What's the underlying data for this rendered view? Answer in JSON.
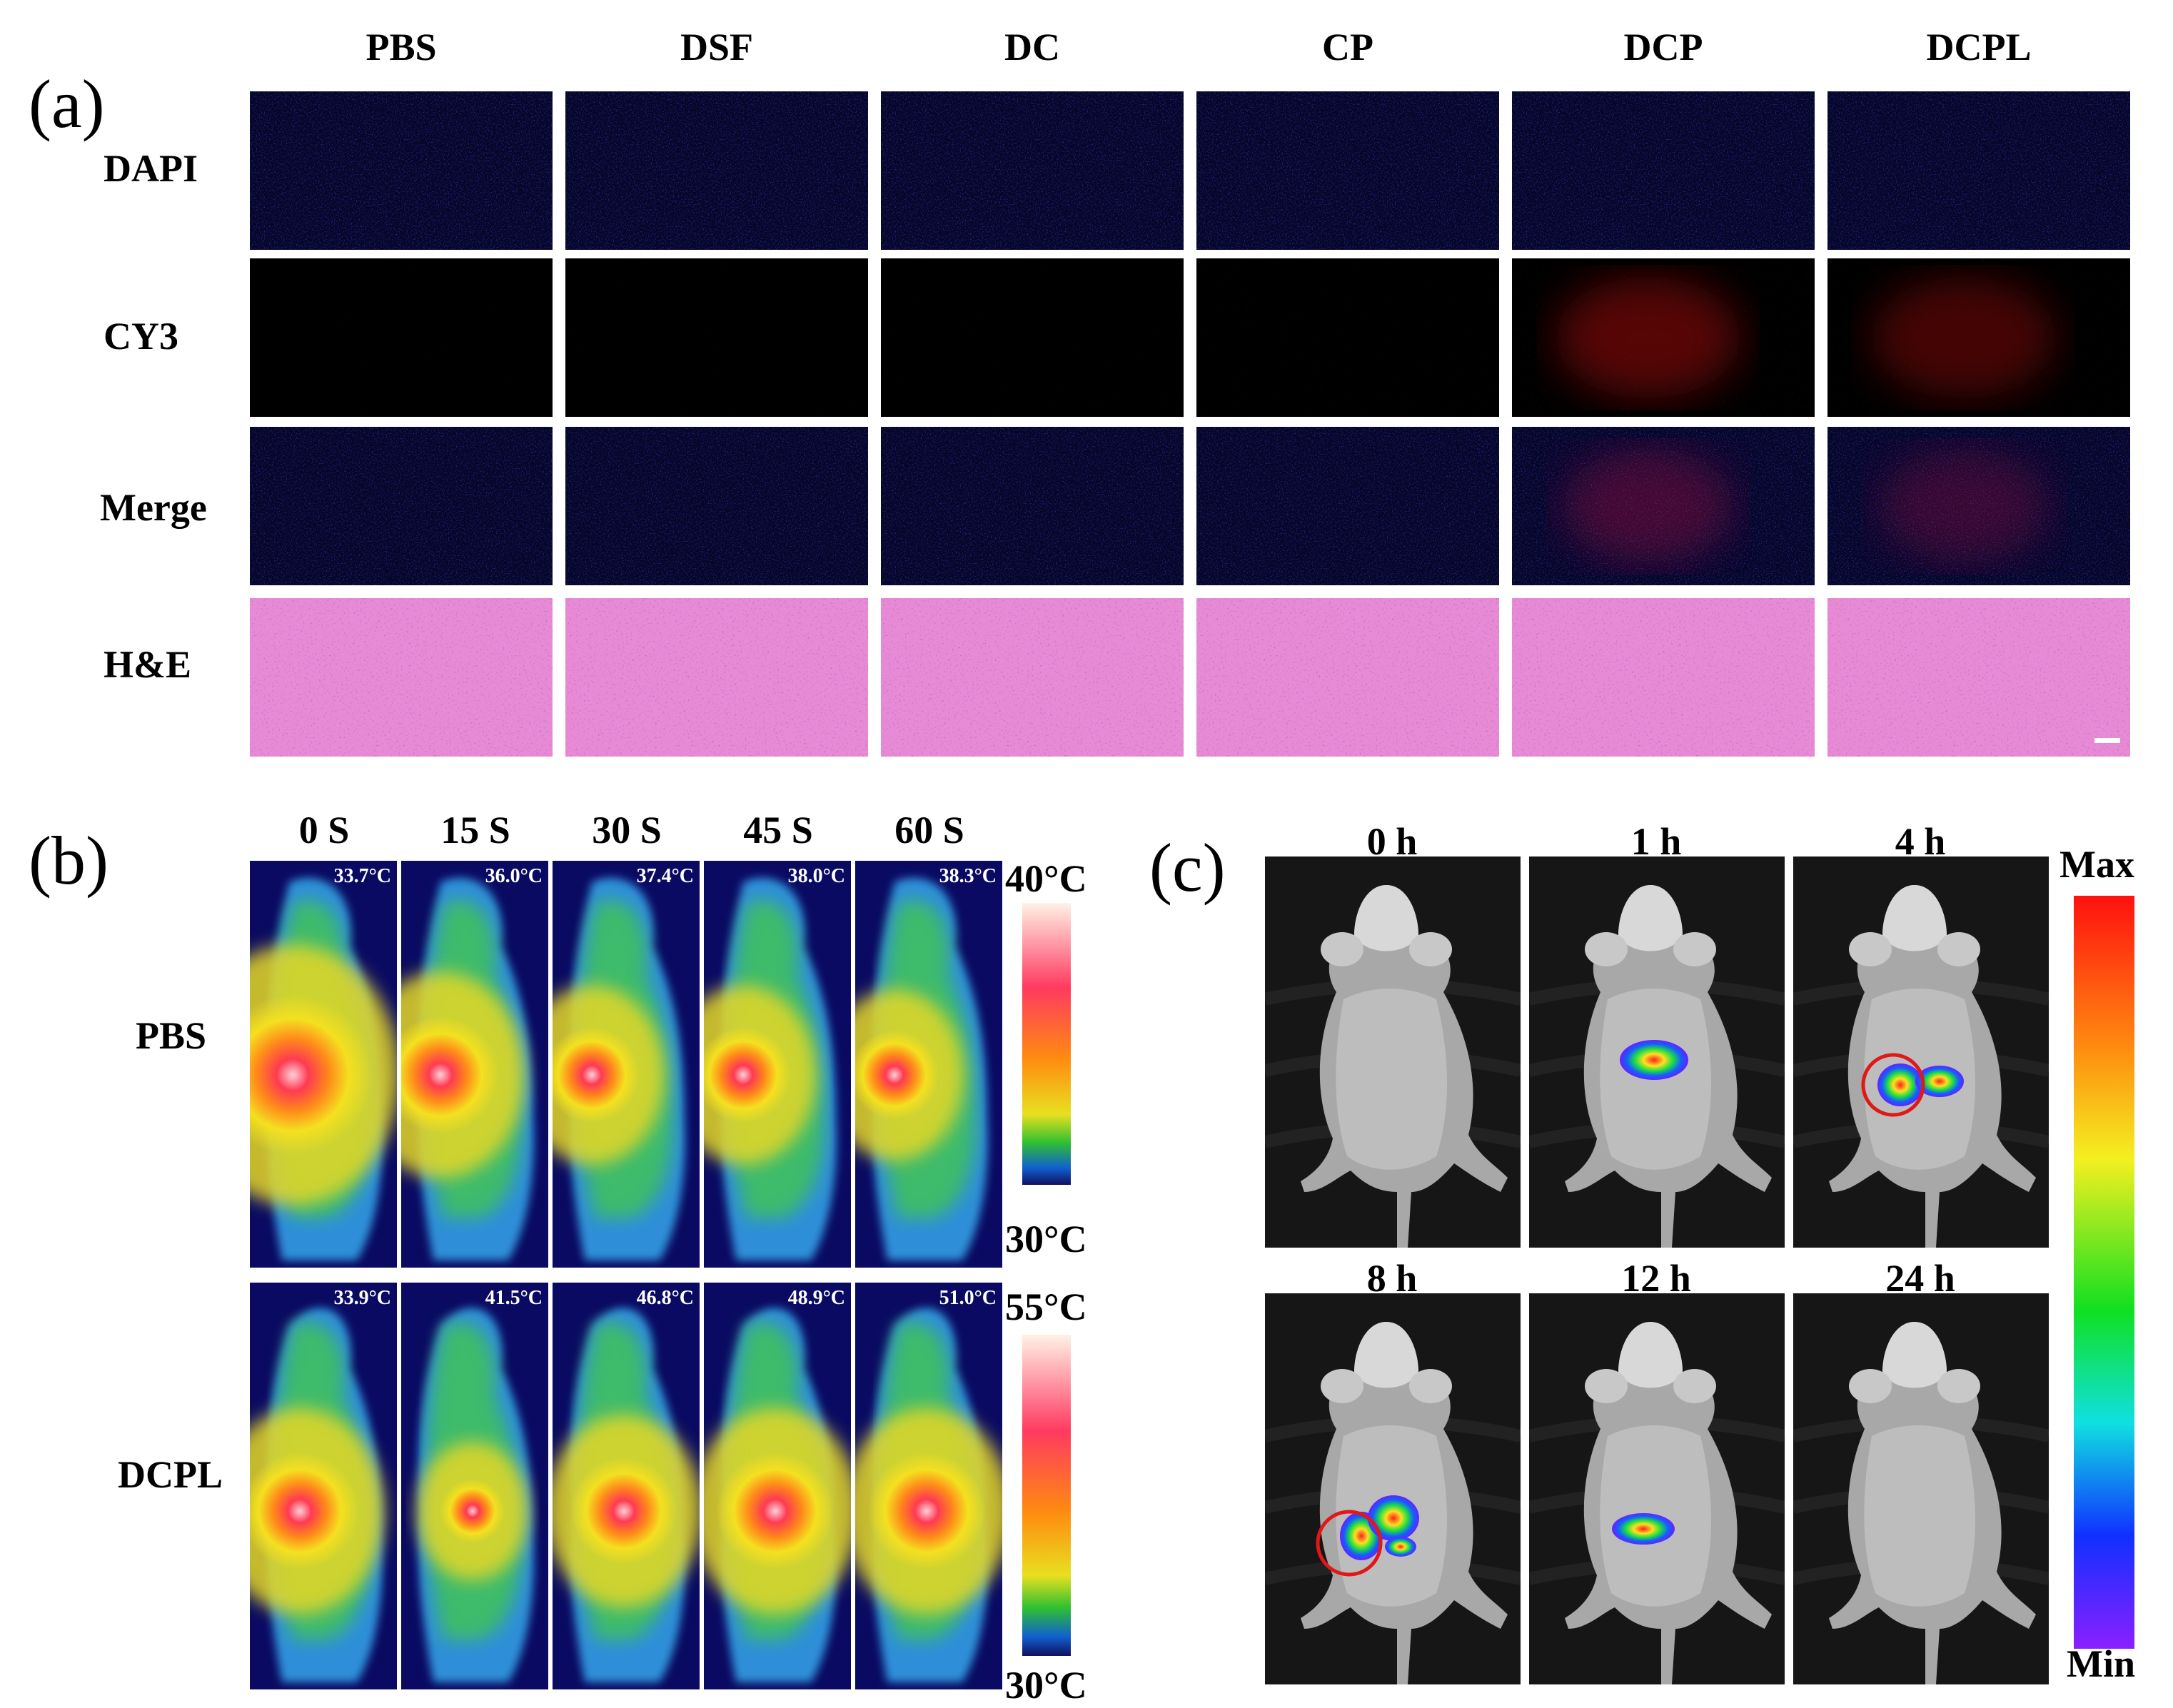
{
  "panel_a": {
    "label": "(a)",
    "columns": [
      "PBS",
      "DSF",
      "DC",
      "CP",
      "DCP",
      "DCPL"
    ],
    "rows": [
      "DAPI",
      "CY3",
      "Merge",
      "H&E"
    ]
  },
  "panel_b": {
    "label": "(b)",
    "times": [
      "0 S",
      "15 S",
      "30 S",
      "45 S",
      "60 S"
    ],
    "groups": [
      {
        "name": "PBS",
        "temps": [
          "33.7°C",
          "36.0°C",
          "37.4°C",
          "38.0°C",
          "38.3°C"
        ],
        "colorbar_max": "40°C",
        "colorbar_min": "30°C"
      },
      {
        "name": "DCPL",
        "temps": [
          "33.9°C",
          "41.5°C",
          "46.8°C",
          "48.9°C",
          "51.0°C"
        ],
        "colorbar_max": "55°C",
        "colorbar_min": "30°C"
      }
    ]
  },
  "panel_c": {
    "label": "(c)",
    "times_row1": [
      "0 h",
      "1 h",
      "4 h"
    ],
    "times_row2": [
      "8 h",
      "12 h",
      "24 h"
    ],
    "colorbar_max": "Max",
    "colorbar_min": "Min"
  }
}
